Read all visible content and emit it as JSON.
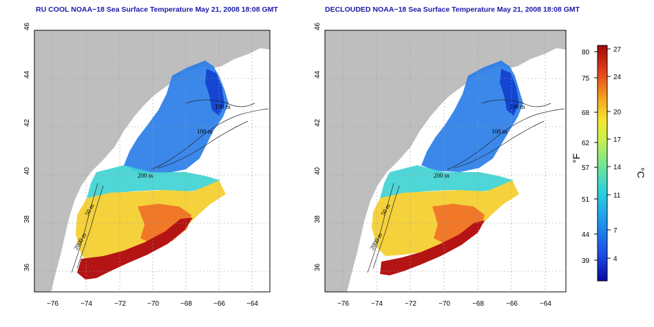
{
  "panels": [
    {
      "title": "RU COOL NOAA−18 Sea Surface Temperature May 21, 2008 18:08 GMT",
      "labels": {
        "iso_200": "200 m",
        "iso_100": "100 m",
        "iso_2000": "2000 m",
        "iso_50": "50 m",
        "iso_100b": "100 m"
      }
    },
    {
      "title": "DECLOUDED NOAA−18 Sea Surface Temperature May 21, 2008 18:08 GMT",
      "labels": {
        "iso_200": "200 m",
        "iso_100": "100 m",
        "iso_2000": "2000 m",
        "iso_50": "50 m",
        "iso_100b": "100 m"
      }
    }
  ],
  "axes": {
    "lon_ticks": [
      "−76",
      "−74",
      "−72",
      "−70",
      "−68",
      "−66",
      "−64"
    ],
    "lat_ticks": [
      "36",
      "38",
      "40",
      "42",
      "44",
      "46"
    ]
  },
  "colorbar": {
    "fahrenheit_unit": "°F",
    "celsius_unit": "°C",
    "fahrenheit_ticks": [
      "80",
      "75",
      "68",
      "62",
      "57",
      "51",
      "44",
      "39"
    ],
    "celsius_ticks": [
      "27",
      "24",
      "20",
      "17",
      "14",
      "11",
      "7",
      "4"
    ]
  },
  "colors": {
    "land": "#bebebe",
    "title": "#1a1aa8",
    "warm": "#b41414",
    "cold": "#0a14b4"
  }
}
